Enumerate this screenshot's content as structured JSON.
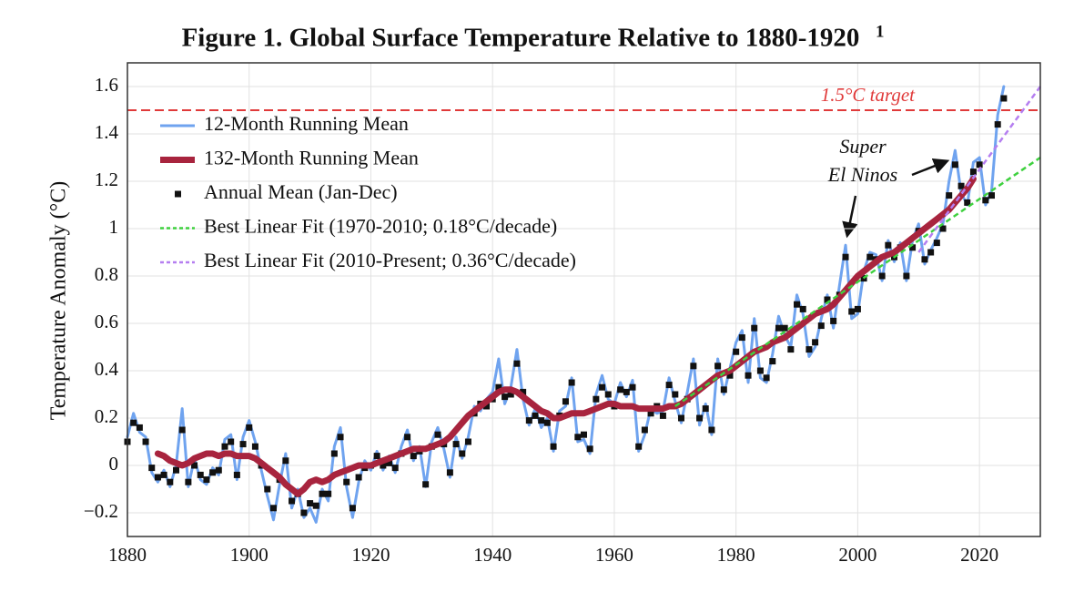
{
  "chart_data": {
    "type": "line",
    "title": "Figure 1. Global Surface Temperature Relative to 1880-1920",
    "title_superscript": "1",
    "ylabel": "Temperature Anomaly (°C)",
    "xlim": [
      1880,
      2030
    ],
    "ylim": [
      -0.3,
      1.7
    ],
    "xticks": [
      1880,
      1900,
      1920,
      1940,
      1960,
      1980,
      2000,
      2020
    ],
    "yticks": [
      {
        "value": -0.2,
        "label": "−0.2"
      },
      0,
      0.2,
      0.4,
      0.6,
      0.8,
      1,
      1.2,
      1.4,
      1.6
    ],
    "grid": true,
    "legend": "upper left",
    "target": {
      "value": 1.5,
      "label": "1.5°C target",
      "color": "#e03a3a"
    },
    "annotation_lines": [
      "Super",
      "El Ninos"
    ],
    "x": [
      1880,
      1881,
      1882,
      1883,
      1884,
      1885,
      1886,
      1887,
      1888,
      1889,
      1890,
      1891,
      1892,
      1893,
      1894,
      1895,
      1896,
      1897,
      1898,
      1899,
      1900,
      1901,
      1902,
      1903,
      1904,
      1905,
      1906,
      1907,
      1908,
      1909,
      1910,
      1911,
      1912,
      1913,
      1914,
      1915,
      1916,
      1917,
      1918,
      1919,
      1920,
      1921,
      1922,
      1923,
      1924,
      1925,
      1926,
      1927,
      1928,
      1929,
      1930,
      1931,
      1932,
      1933,
      1934,
      1935,
      1936,
      1937,
      1938,
      1939,
      1940,
      1941,
      1942,
      1943,
      1944,
      1945,
      1946,
      1947,
      1948,
      1949,
      1950,
      1951,
      1952,
      1953,
      1954,
      1955,
      1956,
      1957,
      1958,
      1959,
      1960,
      1961,
      1962,
      1963,
      1964,
      1965,
      1966,
      1967,
      1968,
      1969,
      1970,
      1971,
      1972,
      1973,
      1974,
      1975,
      1976,
      1977,
      1978,
      1979,
      1980,
      1981,
      1982,
      1983,
      1984,
      1985,
      1986,
      1987,
      1988,
      1989,
      1990,
      1991,
      1992,
      1993,
      1994,
      1995,
      1996,
      1997,
      1998,
      1999,
      2000,
      2001,
      2002,
      2003,
      2004,
      2005,
      2006,
      2007,
      2008,
      2009,
      2010,
      2011,
      2012,
      2013,
      2014,
      2015,
      2016,
      2017,
      2018,
      2019,
      2020,
      2021,
      2022,
      2023,
      2024
    ],
    "series": [
      {
        "name": "12-Month Running Mean",
        "color": "#6fa3ef",
        "width": 3,
        "style": "solid",
        "values": [
          0.12,
          0.22,
          0.14,
          0.12,
          -0.03,
          -0.07,
          -0.02,
          -0.09,
          0.0,
          0.24,
          -0.09,
          0.03,
          -0.06,
          -0.08,
          -0.01,
          -0.04,
          0.11,
          0.13,
          -0.06,
          0.12,
          0.19,
          0.1,
          -0.02,
          -0.13,
          -0.23,
          -0.08,
          0.05,
          -0.18,
          -0.1,
          -0.22,
          -0.18,
          -0.24,
          -0.1,
          -0.15,
          0.08,
          0.16,
          -0.09,
          -0.22,
          -0.07,
          0.02,
          -0.02,
          0.06,
          -0.02,
          0.04,
          -0.03,
          0.08,
          0.15,
          0.02,
          0.08,
          -0.09,
          0.1,
          0.16,
          0.07,
          -0.05,
          0.12,
          0.03,
          0.12,
          0.25,
          0.23,
          0.28,
          0.31,
          0.45,
          0.26,
          0.33,
          0.49,
          0.28,
          0.17,
          0.24,
          0.16,
          0.2,
          0.06,
          0.23,
          0.25,
          0.37,
          0.1,
          0.11,
          0.05,
          0.3,
          0.38,
          0.28,
          0.26,
          0.35,
          0.29,
          0.36,
          0.06,
          0.13,
          0.24,
          0.22,
          0.23,
          0.37,
          0.27,
          0.18,
          0.31,
          0.45,
          0.17,
          0.26,
          0.13,
          0.45,
          0.3,
          0.41,
          0.52,
          0.57,
          0.35,
          0.62,
          0.37,
          0.35,
          0.47,
          0.63,
          0.55,
          0.5,
          0.72,
          0.64,
          0.46,
          0.5,
          0.62,
          0.72,
          0.58,
          0.76,
          0.93,
          0.62,
          0.64,
          0.82,
          0.9,
          0.89,
          0.78,
          0.95,
          0.86,
          0.94,
          0.78,
          0.95,
          1.02,
          0.85,
          0.91,
          0.96,
          1.02,
          1.2,
          1.33,
          1.15,
          1.1,
          1.28,
          1.3,
          1.1,
          1.16,
          1.48,
          1.6
        ]
      },
      {
        "name": "132-Month Running Mean",
        "color": "#a8243e",
        "width": 7,
        "style": "solid",
        "values": [
          null,
          null,
          null,
          null,
          null,
          0.05,
          0.04,
          0.02,
          0.01,
          0.0,
          0.01,
          0.03,
          0.04,
          0.05,
          0.05,
          0.04,
          0.05,
          0.05,
          0.04,
          0.04,
          0.04,
          0.03,
          0.01,
          -0.01,
          -0.03,
          -0.05,
          -0.08,
          -0.1,
          -0.12,
          -0.1,
          -0.07,
          -0.06,
          -0.07,
          -0.06,
          -0.04,
          -0.03,
          -0.02,
          -0.01,
          0.0,
          0.0,
          0.0,
          0.01,
          0.02,
          0.03,
          0.04,
          0.05,
          0.06,
          0.07,
          0.07,
          0.07,
          0.08,
          0.09,
          0.1,
          0.12,
          0.15,
          0.18,
          0.21,
          0.23,
          0.25,
          0.27,
          0.29,
          0.31,
          0.32,
          0.32,
          0.31,
          0.29,
          0.27,
          0.25,
          0.23,
          0.22,
          0.2,
          0.2,
          0.21,
          0.22,
          0.22,
          0.22,
          0.23,
          0.24,
          0.25,
          0.26,
          0.26,
          0.25,
          0.25,
          0.25,
          0.24,
          0.24,
          0.24,
          0.24,
          0.24,
          0.25,
          0.25,
          0.26,
          0.28,
          0.3,
          0.32,
          0.34,
          0.36,
          0.38,
          0.39,
          0.4,
          0.42,
          0.44,
          0.46,
          0.48,
          0.49,
          0.5,
          0.52,
          0.53,
          0.54,
          0.56,
          0.58,
          0.6,
          0.62,
          0.64,
          0.65,
          0.66,
          0.68,
          0.71,
          0.74,
          0.77,
          0.8,
          0.82,
          0.84,
          0.86,
          0.88,
          0.89,
          0.9,
          0.92,
          0.94,
          0.96,
          0.98,
          1.0,
          1.02,
          1.04,
          1.06,
          1.08,
          1.11,
          1.14,
          1.17,
          1.21,
          null,
          null,
          null,
          null,
          null
        ]
      },
      {
        "name": "Annual Mean (Jan-Dec)",
        "color": "#111111",
        "marker": "square",
        "values": [
          0.1,
          0.18,
          0.16,
          0.1,
          -0.01,
          -0.05,
          -0.04,
          -0.07,
          -0.02,
          0.15,
          -0.07,
          0.0,
          -0.04,
          -0.06,
          -0.03,
          -0.02,
          0.08,
          0.1,
          -0.04,
          0.09,
          0.16,
          0.08,
          0.0,
          -0.1,
          -0.18,
          -0.06,
          0.02,
          -0.15,
          -0.12,
          -0.2,
          -0.16,
          -0.17,
          -0.12,
          -0.12,
          0.05,
          0.12,
          -0.07,
          -0.18,
          -0.05,
          -0.01,
          0.0,
          0.04,
          0.0,
          0.01,
          -0.01,
          0.05,
          0.12,
          0.04,
          0.06,
          -0.08,
          0.08,
          0.13,
          0.09,
          -0.03,
          0.09,
          0.05,
          0.1,
          0.22,
          0.26,
          0.25,
          0.28,
          0.33,
          0.29,
          0.3,
          0.43,
          0.31,
          0.19,
          0.21,
          0.19,
          0.18,
          0.08,
          0.21,
          0.27,
          0.35,
          0.12,
          0.13,
          0.07,
          0.28,
          0.33,
          0.3,
          0.25,
          0.32,
          0.31,
          0.33,
          0.08,
          0.15,
          0.22,
          0.25,
          0.21,
          0.34,
          0.3,
          0.2,
          0.28,
          0.42,
          0.2,
          0.24,
          0.15,
          0.42,
          0.32,
          0.38,
          0.48,
          0.54,
          0.38,
          0.58,
          0.4,
          0.37,
          0.44,
          0.58,
          0.58,
          0.49,
          0.68,
          0.66,
          0.49,
          0.52,
          0.59,
          0.7,
          0.61,
          0.72,
          0.88,
          0.65,
          0.66,
          0.79,
          0.88,
          0.87,
          0.8,
          0.93,
          0.88,
          0.92,
          0.8,
          0.92,
          0.99,
          0.87,
          0.9,
          0.94,
          1.0,
          1.14,
          1.27,
          1.18,
          1.11,
          1.24,
          1.27,
          1.12,
          1.14,
          1.44,
          1.55
        ]
      },
      {
        "name": "Best Linear Fit (1970-2010; 0.18°C/decade)",
        "color": "#3fd13f",
        "width": 2.5,
        "style": "dashed",
        "x": [
          1970,
          2030
        ],
        "values": [
          0.25,
          1.3
        ]
      },
      {
        "name": "Best Linear Fit (2010-Present; 0.36°C/decade)",
        "color": "#b57ef0",
        "width": 2.5,
        "style": "dashed",
        "x": [
          2010,
          2030
        ],
        "values": [
          0.9,
          1.6
        ]
      }
    ]
  }
}
